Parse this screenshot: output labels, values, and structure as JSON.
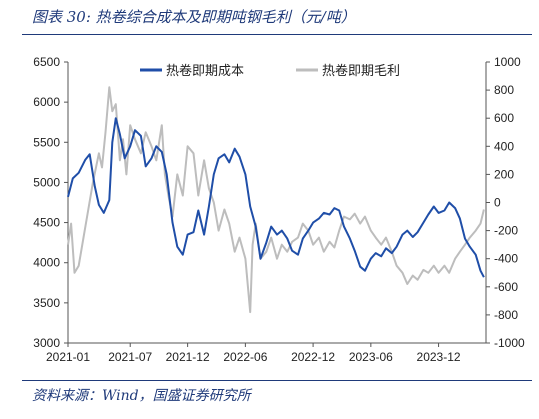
{
  "header": {
    "title": "图表 30:  热卷综合成本及即期吨钢毛利（元/吨）"
  },
  "footer": {
    "source": "资料来源：Wind，国盛证券研究所"
  },
  "chart_data": {
    "type": "line",
    "title": "图表 30:  热卷综合成本及即期吨钢毛利（元/吨）",
    "legend_position": "top",
    "grid": false,
    "x_tick_labels": [
      "2021-01",
      "2021-07",
      "2021-12",
      "2022-06",
      "2022-12",
      "2023-06",
      "2023-12"
    ],
    "x_range": [
      "2021-01-01",
      "2024-05-01"
    ],
    "y_left": {
      "ticks": [
        "6500",
        "6000",
        "5500",
        "5000",
        "4500",
        "4000",
        "3500",
        "3000"
      ],
      "range": [
        3000,
        6500
      ]
    },
    "y_right": {
      "ticks": [
        "1000",
        "800",
        "600",
        "400",
        "200",
        "0",
        "-200",
        "-400",
        "-600",
        "-800",
        "-1000"
      ],
      "range": [
        -1000,
        1000
      ]
    },
    "series": [
      {
        "name": "热卷即期成本",
        "axis": "left",
        "color": "#1f4ea8",
        "points": [
          [
            "2021-01-01",
            4820
          ],
          [
            "2021-01-15",
            5050
          ],
          [
            "2021-02-01",
            5120
          ],
          [
            "2021-02-20",
            5280
          ],
          [
            "2021-03-05",
            5350
          ],
          [
            "2021-03-20",
            4950
          ],
          [
            "2021-04-01",
            4720
          ],
          [
            "2021-04-15",
            4620
          ],
          [
            "2021-05-01",
            4780
          ],
          [
            "2021-05-10",
            5500
          ],
          [
            "2021-05-20",
            5800
          ],
          [
            "2021-06-01",
            5600
          ],
          [
            "2021-06-15",
            5300
          ],
          [
            "2021-07-01",
            5450
          ],
          [
            "2021-07-15",
            5650
          ],
          [
            "2021-08-01",
            5580
          ],
          [
            "2021-08-15",
            5200
          ],
          [
            "2021-09-01",
            5300
          ],
          [
            "2021-09-15",
            5450
          ],
          [
            "2021-10-01",
            5380
          ],
          [
            "2021-10-15",
            5100
          ],
          [
            "2021-11-01",
            4500
          ],
          [
            "2021-11-15",
            4200
          ],
          [
            "2021-12-01",
            4100
          ],
          [
            "2021-12-15",
            4350
          ],
          [
            "2022-01-01",
            4380
          ],
          [
            "2022-01-15",
            4650
          ],
          [
            "2022-02-01",
            4350
          ],
          [
            "2022-02-15",
            4700
          ],
          [
            "2022-03-01",
            5100
          ],
          [
            "2022-03-15",
            5300
          ],
          [
            "2022-04-01",
            5350
          ],
          [
            "2022-04-15",
            5250
          ],
          [
            "2022-05-01",
            5420
          ],
          [
            "2022-05-15",
            5320
          ],
          [
            "2022-06-01",
            5100
          ],
          [
            "2022-06-15",
            4700
          ],
          [
            "2022-07-01",
            4450
          ],
          [
            "2022-07-15",
            4050
          ],
          [
            "2022-08-01",
            4250
          ],
          [
            "2022-08-15",
            4450
          ],
          [
            "2022-09-01",
            4350
          ],
          [
            "2022-09-15",
            4400
          ],
          [
            "2022-10-01",
            4300
          ],
          [
            "2022-10-15",
            4150
          ],
          [
            "2022-11-01",
            4100
          ],
          [
            "2022-11-15",
            4300
          ],
          [
            "2022-12-01",
            4400
          ],
          [
            "2022-12-15",
            4500
          ],
          [
            "2023-01-01",
            4550
          ],
          [
            "2023-01-15",
            4620
          ],
          [
            "2023-02-01",
            4600
          ],
          [
            "2023-02-15",
            4680
          ],
          [
            "2023-03-01",
            4650
          ],
          [
            "2023-03-15",
            4450
          ],
          [
            "2023-04-01",
            4300
          ],
          [
            "2023-04-15",
            4150
          ],
          [
            "2023-05-01",
            3950
          ],
          [
            "2023-05-15",
            3900
          ],
          [
            "2023-06-01",
            4050
          ],
          [
            "2023-06-15",
            4120
          ],
          [
            "2023-07-01",
            4080
          ],
          [
            "2023-07-15",
            4180
          ],
          [
            "2023-08-01",
            4120
          ],
          [
            "2023-08-15",
            4200
          ],
          [
            "2023-09-01",
            4350
          ],
          [
            "2023-09-15",
            4400
          ],
          [
            "2023-10-01",
            4320
          ],
          [
            "2023-10-15",
            4380
          ],
          [
            "2023-11-01",
            4500
          ],
          [
            "2023-11-15",
            4600
          ],
          [
            "2023-12-01",
            4700
          ],
          [
            "2023-12-15",
            4620
          ],
          [
            "2024-01-01",
            4650
          ],
          [
            "2024-01-15",
            4750
          ],
          [
            "2024-02-01",
            4680
          ],
          [
            "2024-02-15",
            4550
          ],
          [
            "2024-03-01",
            4300
          ],
          [
            "2024-03-15",
            4200
          ],
          [
            "2024-04-01",
            4100
          ],
          [
            "2024-04-15",
            3900
          ],
          [
            "2024-04-25",
            3820
          ]
        ]
      },
      {
        "name": "热卷即期毛利",
        "axis": "right",
        "color": "#bdbdbd",
        "points": [
          [
            "2021-01-01",
            -300
          ],
          [
            "2021-01-10",
            -150
          ],
          [
            "2021-01-20",
            -500
          ],
          [
            "2021-02-01",
            -450
          ],
          [
            "2021-02-15",
            -250
          ],
          [
            "2021-03-01",
            -50
          ],
          [
            "2021-03-15",
            150
          ],
          [
            "2021-04-01",
            350
          ],
          [
            "2021-04-10",
            250
          ],
          [
            "2021-04-20",
            500
          ],
          [
            "2021-05-01",
            820
          ],
          [
            "2021-05-10",
            650
          ],
          [
            "2021-05-20",
            700
          ],
          [
            "2021-06-01",
            300
          ],
          [
            "2021-06-10",
            450
          ],
          [
            "2021-06-20",
            200
          ],
          [
            "2021-07-01",
            550
          ],
          [
            "2021-07-15",
            450
          ],
          [
            "2021-08-01",
            350
          ],
          [
            "2021-08-15",
            500
          ],
          [
            "2021-09-01",
            400
          ],
          [
            "2021-09-15",
            300
          ],
          [
            "2021-10-01",
            550
          ],
          [
            "2021-10-10",
            200
          ],
          [
            "2021-10-20",
            50
          ],
          [
            "2021-11-01",
            -100
          ],
          [
            "2021-11-15",
            200
          ],
          [
            "2021-12-01",
            50
          ],
          [
            "2021-12-15",
            400
          ],
          [
            "2022-01-01",
            350
          ],
          [
            "2022-01-15",
            50
          ],
          [
            "2022-02-01",
            300
          ],
          [
            "2022-02-15",
            100
          ],
          [
            "2022-03-01",
            0
          ],
          [
            "2022-03-15",
            -200
          ],
          [
            "2022-04-01",
            -50
          ],
          [
            "2022-04-15",
            -150
          ],
          [
            "2022-05-01",
            -350
          ],
          [
            "2022-05-15",
            -250
          ],
          [
            "2022-06-01",
            -400
          ],
          [
            "2022-06-15",
            -780
          ],
          [
            "2022-06-22",
            -300
          ],
          [
            "2022-07-01",
            -150
          ],
          [
            "2022-07-15",
            -400
          ],
          [
            "2022-08-01",
            -350
          ],
          [
            "2022-08-15",
            -250
          ],
          [
            "2022-09-01",
            -400
          ],
          [
            "2022-09-15",
            -300
          ],
          [
            "2022-10-01",
            -350
          ],
          [
            "2022-10-15",
            -280
          ],
          [
            "2022-11-01",
            -250
          ],
          [
            "2022-11-15",
            -150
          ],
          [
            "2022-12-01",
            -200
          ],
          [
            "2022-12-15",
            -300
          ],
          [
            "2023-01-01",
            -250
          ],
          [
            "2023-01-15",
            -350
          ],
          [
            "2023-02-01",
            -280
          ],
          [
            "2023-02-15",
            -320
          ],
          [
            "2023-03-01",
            -200
          ],
          [
            "2023-03-15",
            -100
          ],
          [
            "2023-04-01",
            -120
          ],
          [
            "2023-04-15",
            -80
          ],
          [
            "2023-05-01",
            -150
          ],
          [
            "2023-05-15",
            -100
          ],
          [
            "2023-06-01",
            -200
          ],
          [
            "2023-06-15",
            -250
          ],
          [
            "2023-07-01",
            -300
          ],
          [
            "2023-07-15",
            -250
          ],
          [
            "2023-08-01",
            -350
          ],
          [
            "2023-08-15",
            -450
          ],
          [
            "2023-09-01",
            -500
          ],
          [
            "2023-09-15",
            -580
          ],
          [
            "2023-10-01",
            -520
          ],
          [
            "2023-10-15",
            -550
          ],
          [
            "2023-11-01",
            -480
          ],
          [
            "2023-11-15",
            -500
          ],
          [
            "2023-12-01",
            -450
          ],
          [
            "2023-12-15",
            -500
          ],
          [
            "2024-01-01",
            -450
          ],
          [
            "2024-01-15",
            -500
          ],
          [
            "2024-02-01",
            -400
          ],
          [
            "2024-02-15",
            -350
          ],
          [
            "2024-03-01",
            -300
          ],
          [
            "2024-03-15",
            -250
          ],
          [
            "2024-04-01",
            -200
          ],
          [
            "2024-04-15",
            -150
          ],
          [
            "2024-04-25",
            -50
          ]
        ]
      }
    ]
  }
}
